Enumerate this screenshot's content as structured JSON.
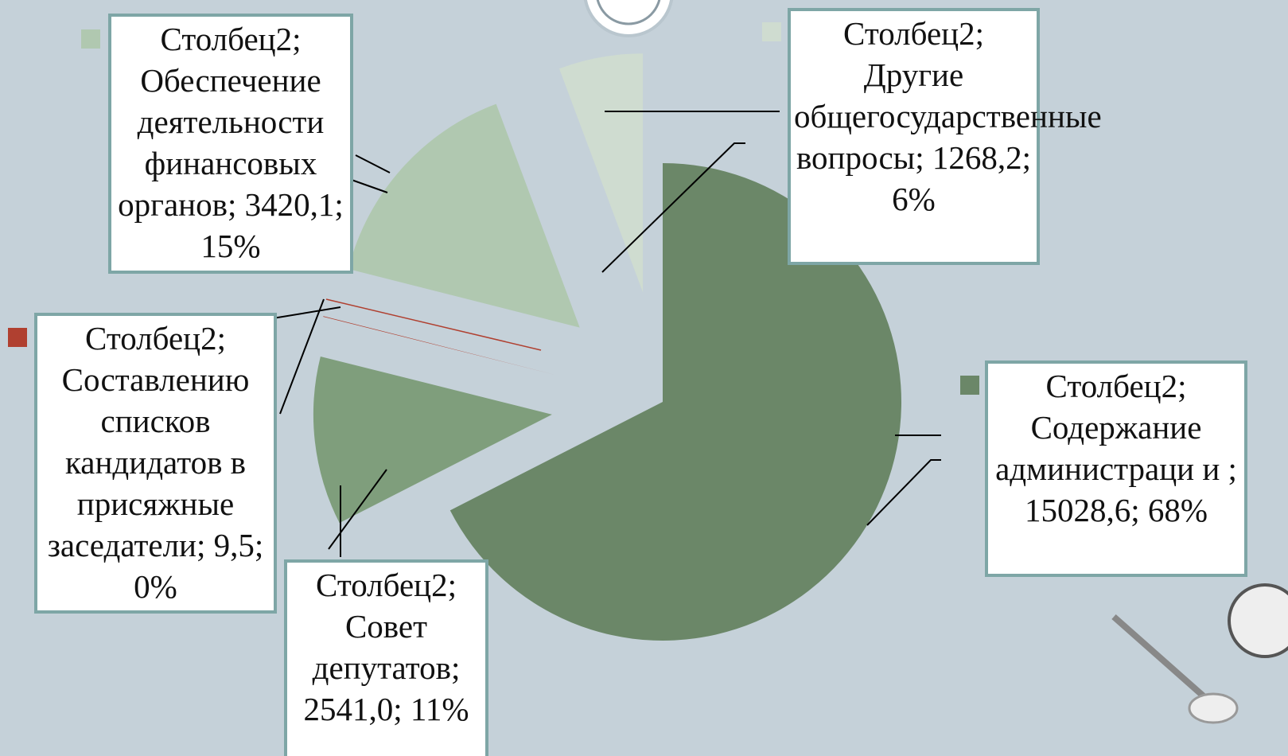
{
  "chart_data": {
    "type": "pie",
    "series": [
      {
        "name": "Столбец2",
        "categories": [
          "Содержание администраци и ",
          "Совет депутатов",
          "Составлению списков кандидатов в присяжные заседатели",
          "Обеспечение деятельности финансовых органов",
          "Другие общегосударственные вопросы"
        ],
        "values": [
          15028.6,
          2541.0,
          9.5,
          3420.1,
          1268.2
        ],
        "value_labels": [
          "15028,6",
          "2541,0",
          "9,5",
          "3420,1",
          "1268,2"
        ],
        "percents": [
          68,
          11,
          0,
          15,
          6
        ],
        "percent_labels": [
          "68%",
          "11%",
          "0%",
          "15%",
          "6%"
        ],
        "colors": [
          "#6b8768",
          "#7f9e7c",
          "#b04030",
          "#b0c8b0",
          "#cfdcd0"
        ]
      }
    ],
    "separator": "; "
  }
}
